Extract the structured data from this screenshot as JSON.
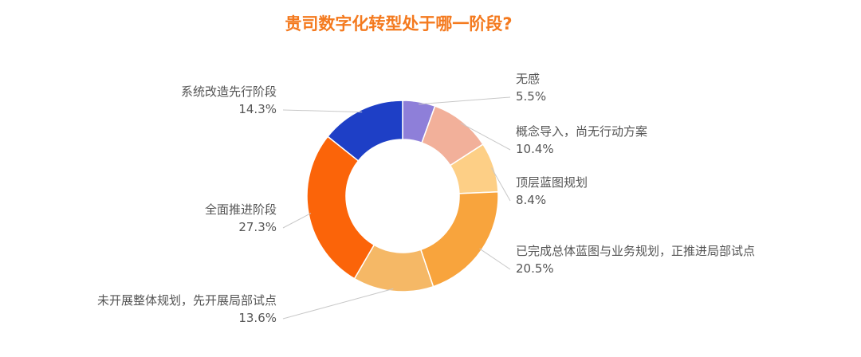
{
  "chart_data": {
    "type": "pie",
    "title": "贵司数字化转型处于哪一阶段?",
    "donut": true,
    "slices": [
      {
        "label": "无感",
        "value": 5.5,
        "display": "5.5%",
        "color": "#8e7fd9"
      },
      {
        "label": "概念导入，尚无行动方案",
        "value": 10.4,
        "display": "10.4%",
        "color": "#f2b09a"
      },
      {
        "label": "顶层蓝图规划",
        "value": 8.4,
        "display": "8.4%",
        "color": "#fdcf86"
      },
      {
        "label": "已完成总体蓝图与业务规划，正推进局部试点",
        "value": 20.5,
        "display": "20.5%",
        "color": "#f8a43d"
      },
      {
        "label": "未开展整体规划，先开展局部试点",
        "value": 13.6,
        "display": "13.6%",
        "color": "#f5b866"
      },
      {
        "label": "全面推进阶段",
        "value": 27.3,
        "display": "27.3%",
        "color": "#fb6409"
      },
      {
        "label": "系统改造先行阶段",
        "value": 14.3,
        "display": "14.3%",
        "color": "#1e3fc6"
      }
    ],
    "legend": "none"
  }
}
